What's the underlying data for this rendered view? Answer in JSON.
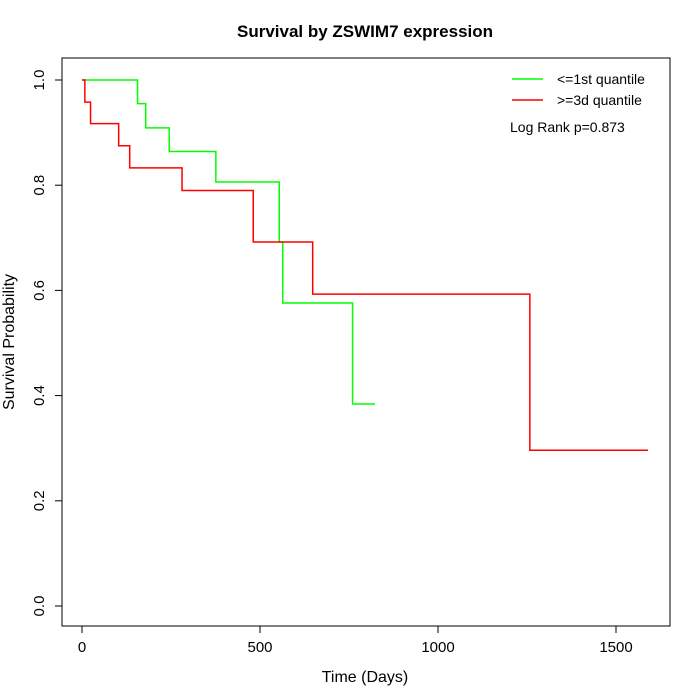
{
  "chart_data": {
    "type": "line",
    "title": "Survival by ZSWIM7 expression",
    "xlabel": "Time (Days)",
    "ylabel": "Survival Probability",
    "xlim": [
      -60,
      1650
    ],
    "ylim": [
      -0.03,
      1.03
    ],
    "xticks": [
      0,
      500,
      1000,
      1500
    ],
    "yticks": [
      0.0,
      0.2,
      0.4,
      0.6,
      0.8,
      1.0
    ],
    "ytick_labels": [
      "0.0",
      "0.2",
      "0.4",
      "0.6",
      "0.8",
      "1.0"
    ],
    "grid": false,
    "legend_position": "top-right",
    "annotation": "Log Rank p=0.873",
    "series": [
      {
        "name": "<=1st quantile",
        "color": "#00ff00",
        "step": true,
        "x": [
          0,
          156,
          179,
          245,
          376,
          554,
          564,
          760,
          823
        ],
        "y": [
          1.0,
          0.955,
          0.909,
          0.864,
          0.806,
          0.692,
          0.576,
          0.384,
          0.384
        ]
      },
      {
        "name": ">=3d quantile",
        "color": "#ff0000",
        "step": true,
        "x": [
          0,
          8,
          24,
          103,
          134,
          281,
          481,
          648,
          1258,
          1590
        ],
        "y": [
          1.0,
          0.958,
          0.917,
          0.875,
          0.833,
          0.79,
          0.692,
          0.593,
          0.296,
          0.296
        ]
      }
    ]
  }
}
